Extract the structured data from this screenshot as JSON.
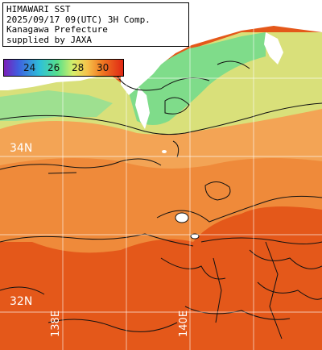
{
  "header": {
    "line1": "HIMAWARI SST",
    "line2": "2025/09/17 09(UTC) 3H Comp.",
    "line3": "Kanagawa Prefecture",
    "line4": "supplied by JAXA"
  },
  "legend": {
    "ticks": [
      "24",
      "26",
      "28",
      "30"
    ],
    "colors": [
      "#7a1fb8",
      "#3f5fe0",
      "#2ec0d8",
      "#58e08a",
      "#d8ee6a",
      "#f6c24a",
      "#f07a22",
      "#e02814"
    ]
  },
  "grid": {
    "lat_labels": [
      "34N",
      "32N"
    ],
    "lon_labels": [
      "138E",
      "140E"
    ]
  },
  "colors": {
    "land": "#ffffff",
    "coast_cold": "#7ee08a",
    "coast_mild": "#d2e88a",
    "sea_warm": "#f0a050",
    "sea_hot": "#e0501a",
    "contour": "#111111"
  }
}
